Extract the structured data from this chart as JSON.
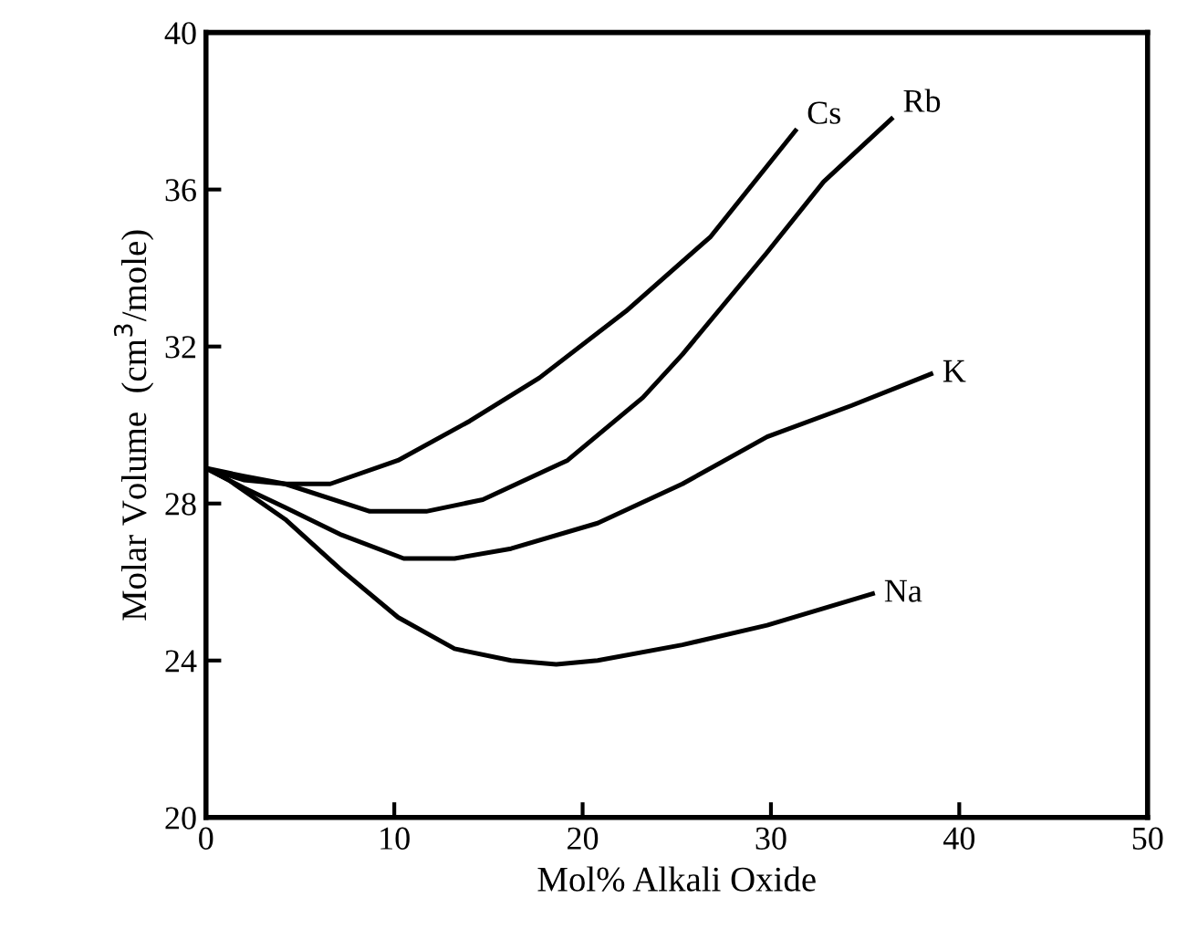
{
  "chart_data": {
    "type": "line",
    "xlabel": "Mol% Alkali Oxide",
    "ylabel": "Molar Volume  (cm$^{3}$/mole)",
    "xlim": [
      0,
      50
    ],
    "ylim": [
      20,
      40
    ],
    "xticks": [
      0,
      10,
      20,
      30,
      40,
      50
    ],
    "yticks": [
      20,
      24,
      28,
      32,
      36,
      40
    ],
    "grid": false,
    "legend": false,
    "marker": "none",
    "line_style": "solid",
    "series": [
      {
        "name": "Cs",
        "color": "#000000",
        "x": [
          0,
          2,
          4.2,
          6.6,
          10.2,
          14,
          17.7,
          22.3,
          26.8,
          31.3
        ],
        "values": [
          28.9,
          28.6,
          28.5,
          28.5,
          29.1,
          30.1,
          31.2,
          32.9,
          34.8,
          37.5
        ]
      },
      {
        "name": "Rb",
        "color": "#000000",
        "x": [
          0,
          2,
          4.2,
          8.7,
          11.7,
          14.7,
          19.2,
          23.2,
          25.3,
          29.8,
          32.8,
          36.4
        ],
        "values": [
          28.9,
          28.7,
          28.5,
          27.8,
          27.8,
          28.1,
          29.1,
          30.7,
          31.8,
          34.4,
          36.2,
          37.8
        ]
      },
      {
        "name": "K",
        "color": "#000000",
        "x": [
          0,
          2,
          4.2,
          7.2,
          10.5,
          13.2,
          16.2,
          20.8,
          25.3,
          29.8,
          34.3,
          38.5
        ],
        "values": [
          28.9,
          28.4,
          27.9,
          27.2,
          26.6,
          26.6,
          26.85,
          27.5,
          28.5,
          29.7,
          30.5,
          31.3
        ]
      },
      {
        "name": "Na",
        "color": "#000000",
        "x": [
          0,
          1.2,
          4.2,
          7.2,
          10.2,
          13.2,
          16.2,
          18.6,
          20.8,
          25.3,
          29.8,
          35.4
        ],
        "values": [
          28.9,
          28.6,
          27.6,
          26.3,
          25.1,
          24.3,
          24.0,
          23.9,
          24.0,
          24.4,
          24.9,
          25.7
        ]
      }
    ]
  }
}
